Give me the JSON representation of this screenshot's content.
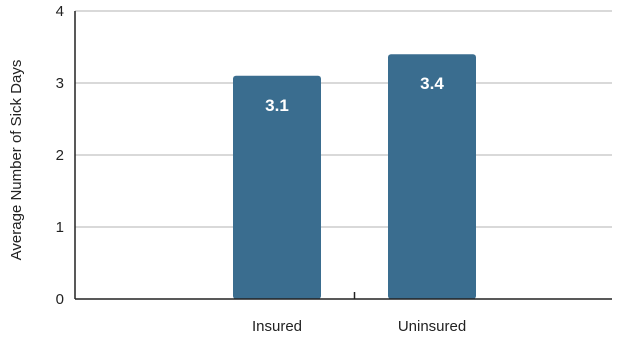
{
  "chart_data": {
    "type": "bar",
    "categories": [
      "Insured",
      "Uninsured"
    ],
    "values": [
      3.1,
      3.4
    ],
    "data_labels": [
      "3.1",
      "3.4"
    ],
    "title": "",
    "xlabel": "",
    "ylabel": "Average Number of Sick Days",
    "ylim": [
      0,
      4
    ],
    "yticks": [
      "0",
      "1",
      "2",
      "3",
      "4"
    ],
    "grid": true,
    "bar_color": "#3a6d8f",
    "grid_color": "#d9d9d9",
    "axis_color": "#222222"
  }
}
